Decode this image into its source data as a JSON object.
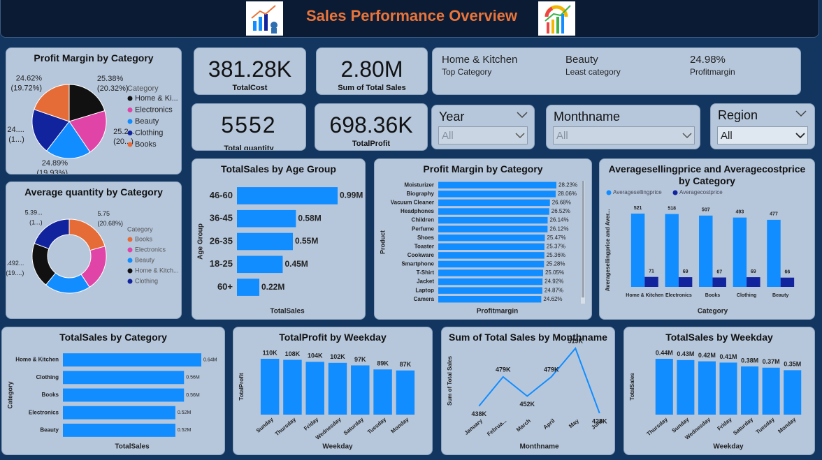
{
  "header": {
    "title": "Sales Performance Overview"
  },
  "kpis": [
    {
      "value": "381.28K",
      "label": "TotalCost"
    },
    {
      "value": "2.80M",
      "label": "Sum of Total Sales"
    },
    {
      "value": "5552",
      "label": "Total quantity"
    },
    {
      "value": "698.36K",
      "label": "TotalProfit"
    }
  ],
  "info": [
    {
      "value": "Home & Kitchen",
      "label": "Top Category"
    },
    {
      "value": "Beauty",
      "label": "Least category"
    },
    {
      "value": "24.98%",
      "label": "Profitmargin"
    }
  ],
  "slicers": [
    {
      "title": "Year",
      "selection": "All"
    },
    {
      "title": "Monthname",
      "selection": "All"
    },
    {
      "title": "Region",
      "selection": "All"
    }
  ],
  "chart_data": [
    {
      "type": "pie",
      "title": "Profit Margin by Category",
      "legend_title": "Category",
      "categories": [
        "Home & Ki...",
        "Electronics",
        "Beauty",
        "Clothing",
        "Books"
      ],
      "colors": [
        "#111111",
        "#e044a7",
        "#118dff",
        "#12239e",
        "#e66c37"
      ],
      "values": [
        25.38,
        25.2,
        24.89,
        24.8,
        24.62
      ],
      "value_labels": [
        "25.38%",
        "25.2...",
        "24.89%",
        "24....",
        "24.62%"
      ],
      "share_labels": [
        "(20.32%)",
        "(20...)",
        "(19.93%)",
        "(1...)",
        "(19.72%)"
      ]
    },
    {
      "type": "donut",
      "title": "Average quantity by Category",
      "legend_title": "Category",
      "categories": [
        "Books",
        "Electronics",
        "Beauty",
        "Home & Kitch...",
        "Clothing"
      ],
      "colors": [
        "#e66c37",
        "#e044a7",
        "#118dff",
        "#111111",
        "#12239e"
      ],
      "values": [
        5.75,
        5.58,
        5.588,
        5.492,
        5.39
      ],
      "value_labels": [
        "5.75",
        null,
        null,
        "5.492...",
        "5.39..."
      ],
      "share_labels": [
        "(20.68%)",
        null,
        null,
        "(19....)",
        "(1...)"
      ]
    },
    {
      "type": "bar",
      "orientation": "horizontal",
      "title": "TotalSales by Age Group",
      "x_title": "TotalSales",
      "y_title": "Age Group",
      "color": "#118dff",
      "categories": [
        "46-60",
        "36-45",
        "26-35",
        "18-25",
        "60+"
      ],
      "values": [
        0.99,
        0.58,
        0.55,
        0.45,
        0.22
      ],
      "value_labels": [
        "0.99M",
        "0.58M",
        "0.55M",
        "0.45M",
        "0.22M"
      ]
    },
    {
      "type": "bar",
      "orientation": "horizontal",
      "title": "Profit Margin by Category",
      "x_title": "Profitmargin",
      "y_title": "Product",
      "color": "#118dff",
      "categories": [
        "Moisturizer",
        "Biography",
        "Vacuum Cleaner",
        "Headphones",
        "Children",
        "Perfume",
        "Shoes",
        "Toaster",
        "Cookware",
        "Smartphone",
        "T-Shirt",
        "Jacket",
        "Laptop",
        "Camera"
      ],
      "values": [
        28.23,
        28.06,
        26.68,
        26.52,
        26.14,
        26.12,
        25.47,
        25.37,
        25.36,
        25.28,
        25.05,
        24.92,
        24.87,
        24.62
      ],
      "value_labels": [
        "28.23%",
        "28.06%",
        "26.68%",
        "26.52%",
        "26.14%",
        "26.12%",
        "25.47%",
        "25.37%",
        "25.36%",
        "25.28%",
        "25.05%",
        "24.92%",
        "24.87%",
        "24.62%"
      ]
    },
    {
      "type": "bar",
      "title": "Averagesellingprice and Averagecostprice by Category",
      "x_title": "Category",
      "y_title": "Averagesellingprice and Aver...",
      "categories": [
        "Home & Kitchen",
        "Electronics",
        "Books",
        "Clothing",
        "Beauty"
      ],
      "series": [
        {
          "name": "Averagesellingprice",
          "color": "#118dff",
          "values": [
            521,
            518,
            507,
            493,
            477
          ]
        },
        {
          "name": "Averagecostprice",
          "color": "#12239e",
          "values": [
            71,
            69,
            67,
            69,
            66
          ]
        }
      ]
    },
    {
      "type": "bar",
      "orientation": "horizontal",
      "title": "TotalSales by Category",
      "x_title": "TotalSales",
      "y_title": "Category",
      "color": "#118dff",
      "categories": [
        "Home & Kitchen",
        "Clothing",
        "Books",
        "Electronics",
        "Beauty"
      ],
      "values": [
        0.64,
        0.56,
        0.56,
        0.52,
        0.52
      ],
      "value_labels": [
        "0.64M",
        "0.56M",
        "0.56M",
        "0.52M",
        "0.52M"
      ]
    },
    {
      "type": "bar",
      "orientation": "vertical",
      "title": "TotalProfit by Weekday",
      "x_title": "Weekday",
      "y_title": "TotalProfit",
      "color": "#118dff",
      "categories": [
        "Sunday",
        "Thursday",
        "Friday",
        "Wednesday",
        "Saturday",
        "Tuesday",
        "Monday"
      ],
      "values": [
        110,
        108,
        104,
        102,
        97,
        89,
        87
      ],
      "value_labels": [
        "110K",
        "108K",
        "104K",
        "102K",
        "97K",
        "89K",
        "87K"
      ]
    },
    {
      "type": "line",
      "title": "Sum of Total Sales by Monthname",
      "x_title": "Monthname",
      "y_title": "Sum of Total Sales",
      "color": "#118dff",
      "categories": [
        "January",
        "Februa...",
        "March",
        "April",
        "May",
        "June"
      ],
      "values": [
        438,
        479,
        452,
        479,
        519,
        428
      ],
      "value_labels": [
        "438K",
        "479K",
        "452K",
        "479K",
        "519K",
        "428K"
      ]
    },
    {
      "type": "bar",
      "orientation": "vertical",
      "title": "TotalSales by Weekday",
      "x_title": "Weekday",
      "y_title": "TotalSales",
      "color": "#118dff",
      "categories": [
        "Thursday",
        "Sunday",
        "Wednesday",
        "Friday",
        "Saturday",
        "Tuesday",
        "Monday"
      ],
      "values": [
        0.44,
        0.43,
        0.42,
        0.41,
        0.38,
        0.37,
        0.35
      ],
      "value_labels": [
        "0.44M",
        "0.43M",
        "0.42M",
        "0.41M",
        "0.38M",
        "0.37M",
        "0.35M"
      ]
    }
  ]
}
